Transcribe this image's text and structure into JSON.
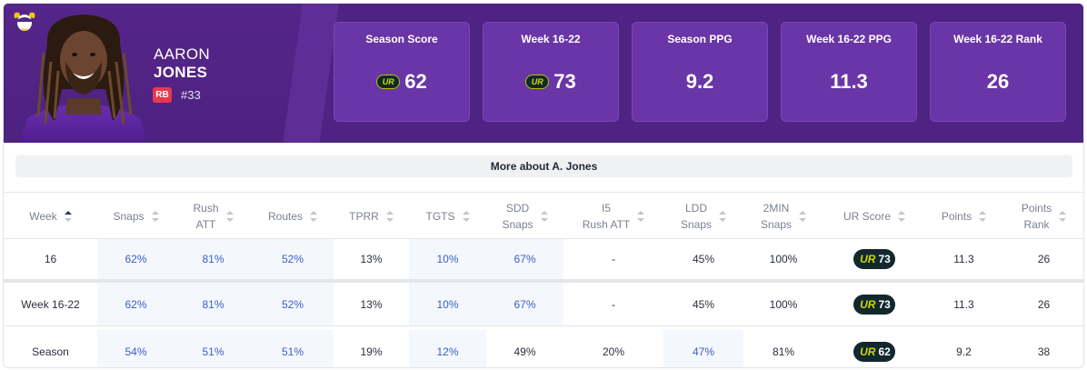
{
  "player": {
    "first_name": "AARON",
    "last_name": "JONES",
    "position": "RB",
    "number": "#33",
    "team_logo_icon": "vikings-logo-icon",
    "photo_icon": "player-headshot-icon"
  },
  "colors": {
    "header_bg": "#5a2a8c",
    "card_bg": "#6a35a6",
    "position_badge": "#e8384f",
    "highlight_cell": "#f4f8fd",
    "highlight_text": "#3b5cc8",
    "ur_pill_bg": "#12282d",
    "ur_mark": "#c9d800"
  },
  "stat_cards": [
    {
      "title": "Season Score",
      "value": "62",
      "has_ur_logo": true
    },
    {
      "title": "Week 16-22",
      "value": "73",
      "has_ur_logo": true
    },
    {
      "title": "Season PPG",
      "value": "9.2",
      "has_ur_logo": false
    },
    {
      "title": "Week 16-22 PPG",
      "value": "11.3",
      "has_ur_logo": false
    },
    {
      "title": "Week 16-22 Rank",
      "value": "26",
      "has_ur_logo": false
    }
  ],
  "more_button_label": "More about A. Jones",
  "ur_mark": "UR",
  "table": {
    "headers": [
      {
        "line1": "Week",
        "line2": "",
        "sort": "asc"
      },
      {
        "line1": "Snaps",
        "line2": "",
        "sort": "none"
      },
      {
        "line1": "Rush",
        "line2": "ATT",
        "sort": "none"
      },
      {
        "line1": "Routes",
        "line2": "",
        "sort": "none"
      },
      {
        "line1": "TPRR",
        "line2": "",
        "sort": "none"
      },
      {
        "line1": "TGTS",
        "line2": "",
        "sort": "none"
      },
      {
        "line1": "SDD",
        "line2": "Snaps",
        "sort": "none"
      },
      {
        "line1": "I5",
        "line2": "Rush ATT",
        "sort": "none"
      },
      {
        "line1": "LDD",
        "line2": "Snaps",
        "sort": "none"
      },
      {
        "line1": "2MIN",
        "line2": "Snaps",
        "sort": "none"
      },
      {
        "line1": "UR Score",
        "line2": "",
        "sort": "none"
      },
      {
        "line1": "Points",
        "line2": "",
        "sort": "none"
      },
      {
        "line1": "Points",
        "line2": "Rank",
        "sort": "none"
      }
    ],
    "rows": [
      {
        "cells": [
          "16",
          "62%",
          "81%",
          "52%",
          "13%",
          "10%",
          "67%",
          "-",
          "45%",
          "100%",
          "73",
          "11.3",
          "26"
        ],
        "highlighted": [
          false,
          true,
          true,
          true,
          false,
          true,
          true,
          false,
          false,
          false,
          false,
          false,
          false
        ]
      },
      {
        "cells": [
          "Week 16-22",
          "62%",
          "81%",
          "52%",
          "13%",
          "10%",
          "67%",
          "-",
          "45%",
          "100%",
          "73",
          "11.3",
          "26"
        ],
        "highlighted": [
          false,
          true,
          true,
          true,
          false,
          true,
          true,
          false,
          false,
          false,
          false,
          false,
          false
        ]
      },
      {
        "cells": [
          "Season",
          "54%",
          "51%",
          "51%",
          "19%",
          "12%",
          "49%",
          "20%",
          "47%",
          "81%",
          "62",
          "9.2",
          "38"
        ],
        "highlighted": [
          false,
          true,
          true,
          true,
          false,
          true,
          false,
          false,
          true,
          false,
          false,
          false,
          false
        ]
      }
    ]
  }
}
